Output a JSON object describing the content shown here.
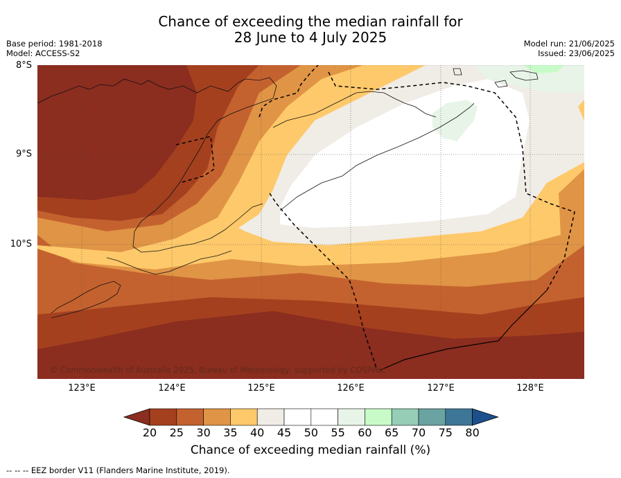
{
  "title": {
    "line1": "Chance of exceeding the median rainfall for",
    "line2": "28 June to 4 July 2025"
  },
  "meta_left": {
    "base_period": "Base period: 1981-2018",
    "model": "Model: ACCESS-S2"
  },
  "meta_right": {
    "model_run": "Model run: 21/06/2025",
    "issued": "Issued: 23/06/2025"
  },
  "map": {
    "latitude_labels": [
      "8°S",
      "9°S",
      "10°S"
    ],
    "longitude_labels": [
      "123°E",
      "124°E",
      "125°E",
      "126°E",
      "127°E",
      "128°E"
    ],
    "copyright": "© Commonwealth of Australia 2025, Bureau of Meteorology, supported by COSPPac"
  },
  "colorbar": {
    "ticks": [
      "20",
      "25",
      "30",
      "35",
      "40",
      "45",
      "50",
      "55",
      "60",
      "65",
      "70",
      "75",
      "80"
    ],
    "colors": [
      "#8b2d1f",
      "#a5401f",
      "#c4622f",
      "#e09445",
      "#fec96a",
      "#f0ece6",
      "#ffffff",
      "#ffffff",
      "#e8f4e8",
      "#c8fbc8",
      "#95cdb6",
      "#6ba3a3",
      "#3d7696",
      "#1d4f8c"
    ],
    "label": "Chance of exceeding median rainfall (%)"
  },
  "footer": "--  --  -- EEZ border V11 (Flanders Marine Institute, 2019)."
}
